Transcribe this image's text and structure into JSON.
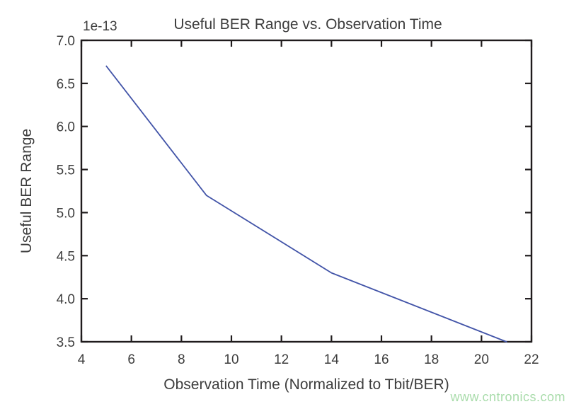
{
  "figure": {
    "title": "Useful BER Range vs. Observation Time",
    "xlabel": "Observation Time (Normalized to Tbit/BER)",
    "ylabel": "Useful BER Range",
    "offset_label": "1e-13",
    "watermark": "www.cntronics.com"
  },
  "chart_data": {
    "type": "line",
    "title": "Useful BER Range vs. Observation Time",
    "xlabel": "Observation Time (Normalized to Tbit/BER)",
    "ylabel": "Useful BER Range",
    "y_offset_multiplier": "1e-13",
    "x": [
      5,
      9,
      14,
      21
    ],
    "y": [
      6.7,
      5.2,
      4.3,
      3.5
    ],
    "xlim": [
      4,
      22
    ],
    "ylim": [
      3.5,
      7.0
    ],
    "x_ticks": [
      4,
      6,
      8,
      10,
      12,
      14,
      16,
      18,
      20,
      22
    ],
    "x_tick_labels": [
      "4",
      "6",
      "8",
      "10",
      "12",
      "14",
      "16",
      "18",
      "20",
      "22"
    ],
    "y_ticks": [
      3.5,
      4.0,
      4.5,
      5.0,
      5.5,
      6.0,
      6.5,
      7.0
    ],
    "y_tick_labels": [
      "3.5",
      "4.0",
      "4.5",
      "5.0",
      "5.5",
      "6.0",
      "6.5",
      "7.0"
    ],
    "grid": false,
    "legend": null,
    "line_color": "#4254a8",
    "line_width": 1.8,
    "axis_color": "#1f1b1c",
    "text_color": "#3d3d3d",
    "watermark_color": "#a9dcab",
    "tick_length": 9,
    "tick_direction": "in"
  }
}
